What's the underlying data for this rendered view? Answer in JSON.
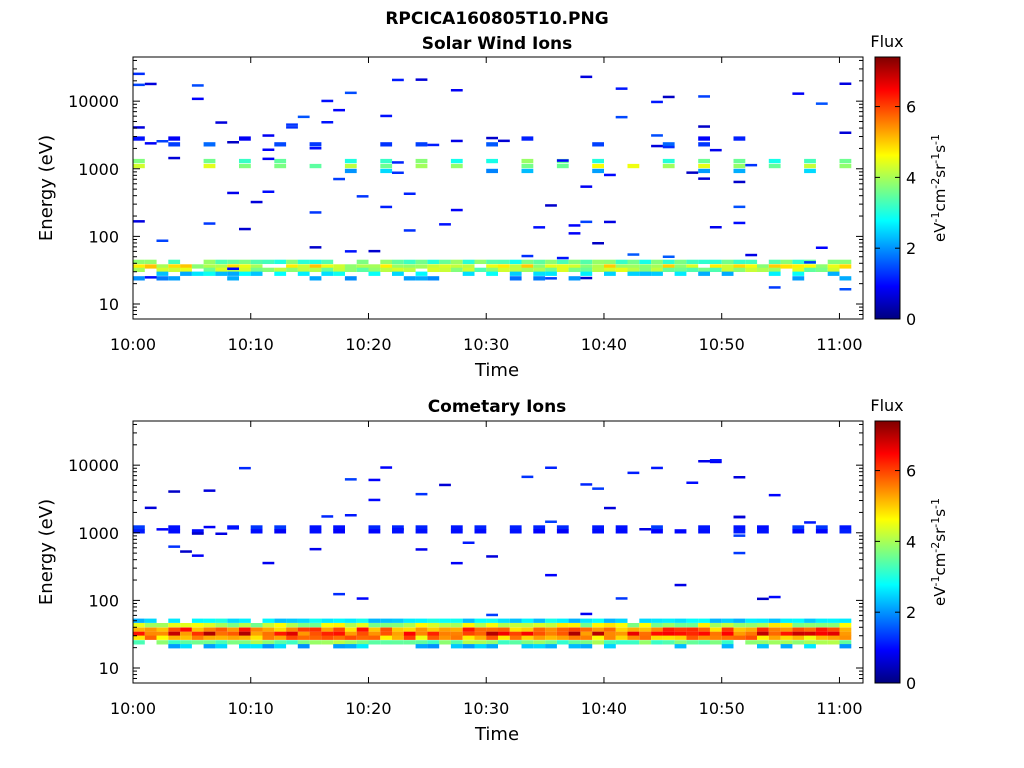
{
  "figure_title": "RPCICA160805T10.PNG",
  "colormap": {
    "name": "jet",
    "stops": [
      "#00007f",
      "#0000ff",
      "#007fff",
      "#00ffff",
      "#7fff7f",
      "#ffff00",
      "#ff7f00",
      "#ff0000",
      "#7f0000"
    ]
  },
  "chart_data": [
    {
      "type": "heatmap",
      "title": "Solar Wind Ions",
      "xlabel": "Time",
      "ylabel": "Energy (eV)",
      "x_range": [
        "10:00",
        "11:02"
      ],
      "xticks": [
        "10:00",
        "10:10",
        "10:20",
        "10:30",
        "10:40",
        "10:50",
        "11:00"
      ],
      "y_scale": "log",
      "ylim": [
        6,
        45000
      ],
      "yticks": [
        10,
        100,
        1000,
        10000
      ],
      "yticks_labels": [
        "10",
        "100",
        "1000",
        "10000"
      ],
      "colorbar": {
        "title": "Flux",
        "label": "eV-1cm-2sr-1s-1",
        "range": [
          0,
          7.4
        ],
        "ticks": [
          0,
          2,
          4,
          6
        ],
        "tick_labels": [
          "0",
          "2",
          "4",
          "6"
        ]
      },
      "time_step_min": 1,
      "bands": [
        {
          "energy": 42,
          "flux": 3.4,
          "from": "10:00",
          "to": "11:01",
          "dropout": 0.12
        },
        {
          "energy": 36,
          "flux": 4.4,
          "from": "10:00",
          "to": "11:01",
          "dropout": 0.05
        },
        {
          "energy": 32,
          "flux": 3.9,
          "from": "10:00",
          "to": "11:01",
          "dropout": 0.05
        },
        {
          "energy": 28,
          "flux": 2.5,
          "from": "10:00",
          "to": "11:01",
          "dropout": 0.35
        },
        {
          "energy": 24,
          "flux": 1.9,
          "from": "10:00",
          "to": "11:01",
          "dropout": 0.8
        },
        {
          "energy": 1300,
          "flux": 3.4,
          "from": "10:00",
          "to": "11:01",
          "period": 3,
          "dropout": 0.1
        },
        {
          "energy": 1100,
          "flux": 4.0,
          "from": "10:00",
          "to": "11:01",
          "period": 3,
          "dropout": 0.1
        },
        {
          "energy": 930,
          "flux": 2.2,
          "from": "10:00",
          "to": "11:01",
          "period": 3,
          "dropout": 0.5
        },
        {
          "energy": 2300,
          "flux": 1.5,
          "from": "10:00",
          "to": "11:01",
          "period": 3,
          "dropout": 0.35
        },
        {
          "energy": 2800,
          "flux": 1.0,
          "from": "10:00",
          "to": "11:01",
          "period": 3,
          "dropout": 0.6
        }
      ],
      "sparse": {
        "count": 95,
        "energy_min": 15,
        "energy_max": 26000,
        "flux_min": 0.5,
        "flux_max": 1.6,
        "seed": 7
      }
    },
    {
      "type": "heatmap",
      "title": "Cometary Ions",
      "xlabel": "Time",
      "ylabel": "Energy (eV)",
      "x_range": [
        "10:00",
        "11:02"
      ],
      "xticks": [
        "10:00",
        "10:10",
        "10:20",
        "10:30",
        "10:40",
        "10:50",
        "11:00"
      ],
      "y_scale": "log",
      "ylim": [
        6,
        45000
      ],
      "yticks": [
        10,
        100,
        1000,
        10000
      ],
      "yticks_labels": [
        "10",
        "100",
        "1000",
        "10000"
      ],
      "colorbar": {
        "title": "Flux",
        "label": "eV-1cm-2sr-1s-1",
        "range": [
          0,
          7.4
        ],
        "ticks": [
          0,
          2,
          4,
          6
        ],
        "tick_labels": [
          "0",
          "2",
          "4",
          "6"
        ]
      },
      "time_step_min": 1,
      "bands": [
        {
          "energy": 50,
          "flux": 2.6,
          "from": "10:00",
          "to": "11:01",
          "dropout": 0.1
        },
        {
          "energy": 43,
          "flux": 4.2,
          "from": "10:00",
          "to": "11:01",
          "dropout": 0.0
        },
        {
          "energy": 37,
          "flux": 5.6,
          "from": "10:00",
          "to": "11:01",
          "dropout": 0.0
        },
        {
          "energy": 32,
          "flux": 6.2,
          "from": "10:00",
          "to": "11:01",
          "dropout": 0.0
        },
        {
          "energy": 28,
          "flux": 5.3,
          "from": "10:00",
          "to": "11:01",
          "dropout": 0.0
        },
        {
          "energy": 24,
          "flux": 3.6,
          "from": "10:00",
          "to": "11:01",
          "dropout": 0.05
        },
        {
          "energy": 21,
          "flux": 2.3,
          "from": "10:00",
          "to": "11:01",
          "dropout": 0.55
        },
        {
          "energy": 1200,
          "flux": 1.2,
          "from": "10:00",
          "to": "11:01",
          "period": 2.4,
          "dropout": 0.05
        },
        {
          "energy": 1050,
          "flux": 1.0,
          "from": "10:00",
          "to": "11:01",
          "period": 2.4,
          "dropout": 0.1
        }
      ],
      "sparse": {
        "count": 55,
        "energy_min": 60,
        "energy_max": 12000,
        "flux_min": 0.5,
        "flux_max": 1.4,
        "seed": 19
      }
    }
  ]
}
